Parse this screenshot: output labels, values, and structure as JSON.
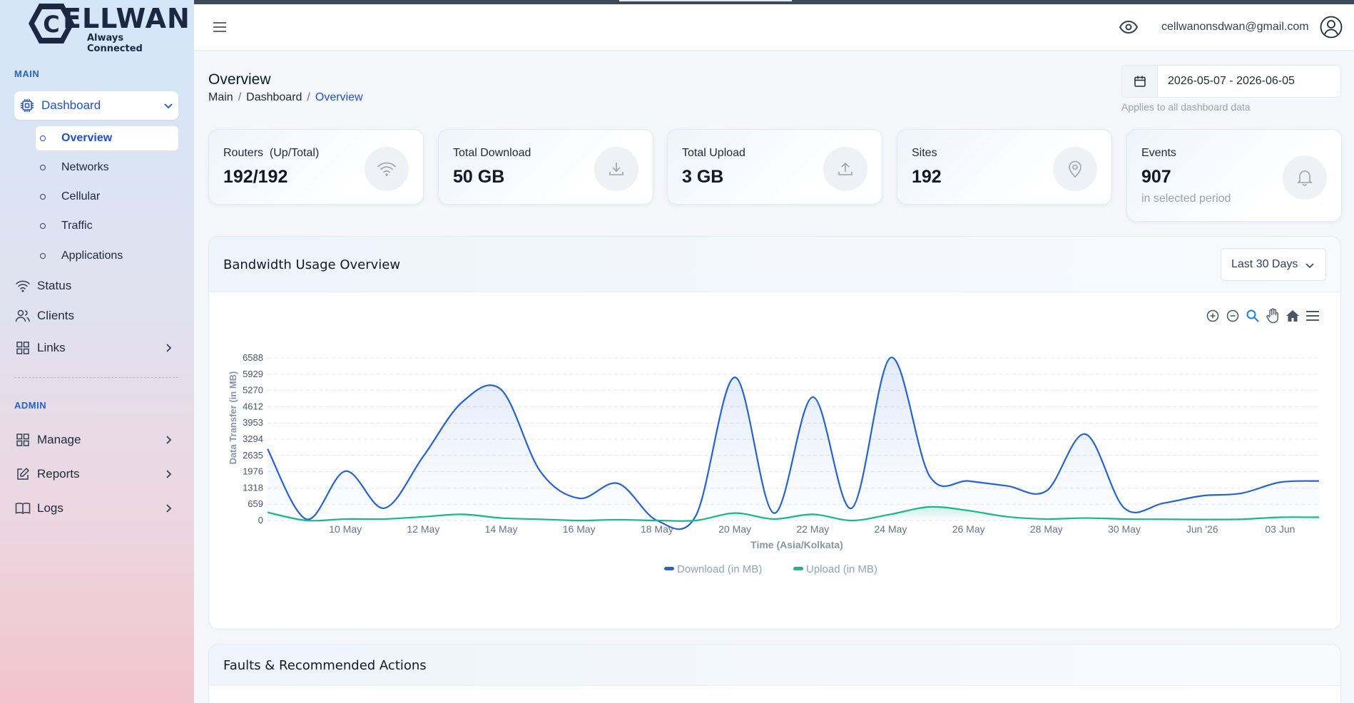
{
  "brand": {
    "name": "ELLWAN",
    "initial": "C",
    "tagline": "Always Connected"
  },
  "sidebar": {
    "main_label": "MAIN",
    "admin_label": "ADMIN",
    "dashboard": "Dashboard",
    "sub_items": [
      {
        "label": "Overview"
      },
      {
        "label": "Networks"
      },
      {
        "label": "Cellular"
      },
      {
        "label": "Traffic"
      },
      {
        "label": "Applications"
      }
    ],
    "status": "Status",
    "clients": "Clients",
    "links": "Links",
    "manage": "Manage",
    "reports": "Reports",
    "logs": "Logs"
  },
  "topbar": {
    "email": "cellwanonsdwan@gmail.com"
  },
  "page": {
    "title": "Overview",
    "breadcrumb": [
      "Main",
      "Dashboard",
      "Overview"
    ],
    "date_range": "2026-05-07 - 2026-06-05",
    "date_hint": "Applies to all dashboard data"
  },
  "cards": [
    {
      "label": "Routers  (Up/Total)",
      "value": "192/192",
      "icon": "wifi-icon"
    },
    {
      "label": "Total Download",
      "value": "50 GB",
      "icon": "download-icon"
    },
    {
      "label": "Total Upload",
      "value": "3 GB",
      "icon": "upload-icon"
    },
    {
      "label": "Sites",
      "value": "192",
      "icon": "location-pin-icon"
    },
    {
      "label": "Events",
      "value": "907",
      "sub": "in selected period",
      "icon": "bell-icon"
    }
  ],
  "bandwidth": {
    "title": "Bandwidth Usage Overview",
    "range": "Last 30 Days"
  },
  "faults": {
    "title": "Faults & Recommended Actions"
  },
  "chart_data": {
    "type": "line",
    "title": "",
    "xlabel": "Time (Asia/Kolkata)",
    "ylabel": "Data Transfer (in MB)",
    "yticks": [
      0,
      659,
      1318,
      1976,
      2635,
      3294,
      3953,
      4612,
      5270,
      5929,
      6588
    ],
    "ylim": [
      0,
      6588
    ],
    "xticks": [
      "10 May",
      "12 May",
      "14 May",
      "16 May",
      "18 May",
      "20 May",
      "22 May",
      "24 May",
      "26 May",
      "28 May",
      "30 May",
      "Jun '26",
      "03 Jun"
    ],
    "x": [
      "08 May",
      "09 May",
      "10 May",
      "11 May",
      "12 May",
      "13 May",
      "14 May",
      "15 May",
      "16 May",
      "17 May",
      "18 May",
      "19 May",
      "20 May",
      "21 May",
      "22 May",
      "23 May",
      "24 May",
      "25 May",
      "26 May",
      "27 May",
      "28 May",
      "29 May",
      "30 May",
      "31 May",
      "01 Jun",
      "02 Jun",
      "03 Jun",
      "04 Jun"
    ],
    "series": [
      {
        "name": "Download (in MB)",
        "color": "#2463d6",
        "values": [
          2900,
          50,
          2000,
          500,
          2600,
          4800,
          5300,
          2000,
          900,
          1500,
          0,
          200,
          5800,
          300,
          5000,
          500,
          6600,
          1800,
          1600,
          1400,
          1200,
          3500,
          500,
          700,
          1000,
          1100,
          1550,
          1600
        ]
      },
      {
        "name": "Upload (in MB)",
        "color": "#17b88a",
        "values": [
          330,
          0,
          60,
          60,
          150,
          250,
          100,
          50,
          0,
          30,
          0,
          0,
          300,
          60,
          250,
          0,
          250,
          550,
          400,
          150,
          60,
          100,
          60,
          50,
          40,
          50,
          130,
          130
        ]
      }
    ],
    "legend": "bottom-center",
    "grid": true
  }
}
